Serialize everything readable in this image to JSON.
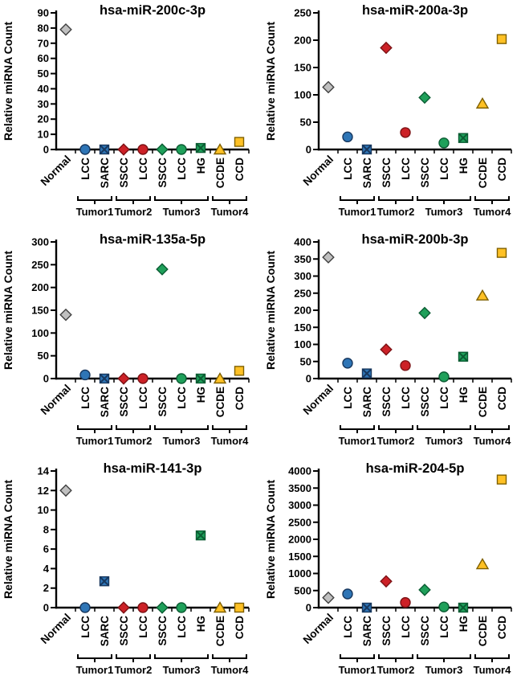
{
  "figure": {
    "background": "#FFFFFF",
    "axis_color": "#000000",
    "ylabel": "Relative miRNA Count"
  },
  "samples": [
    {
      "label": "Normal",
      "shape": "diamond",
      "fill": "#C0C0C0",
      "stroke": "#404040"
    },
    {
      "label": "LCC",
      "shape": "circle",
      "fill": "#2E75B6",
      "stroke": "#17375E"
    },
    {
      "label": "SARC",
      "shape": "square-x",
      "fill": "#2E75B6",
      "stroke": "#17375E"
    },
    {
      "label": "SSCC",
      "shape": "diamond",
      "fill": "#CC2127",
      "stroke": "#7C1215"
    },
    {
      "label": "LCC",
      "shape": "circle",
      "fill": "#CC2127",
      "stroke": "#7C1215"
    },
    {
      "label": "SSCC",
      "shape": "diamond",
      "fill": "#1FA05A",
      "stroke": "#0B5C33"
    },
    {
      "label": "LCC",
      "shape": "circle",
      "fill": "#1FA05A",
      "stroke": "#0B5C33"
    },
    {
      "label": "HG",
      "shape": "square-x",
      "fill": "#1FA05A",
      "stroke": "#0B5C33"
    },
    {
      "label": "CCDE",
      "shape": "triangle",
      "fill": "#FFC125",
      "stroke": "#7F6000"
    },
    {
      "label": "CCD",
      "shape": "square",
      "fill": "#FFC125",
      "stroke": "#7F6000"
    }
  ],
  "groups": [
    {
      "label": "Tumor1",
      "from": 1,
      "to": 2
    },
    {
      "label": "Tumor2",
      "from": 3,
      "to": 4
    },
    {
      "label": "Tumor3",
      "from": 5,
      "to": 7
    },
    {
      "label": "Tumor4",
      "from": 8,
      "to": 9
    }
  ],
  "chart_data": [
    {
      "type": "scatter",
      "title": "hsa-miR-200c-3p",
      "ylabel": "Relative miRNA Count",
      "categories": [
        "Normal",
        "LCC",
        "SARC",
        "SSCC",
        "LCC",
        "SSCC",
        "LCC",
        "HG",
        "CCDE",
        "CCD"
      ],
      "values": [
        79,
        0,
        0,
        0,
        0,
        0,
        0,
        1,
        0,
        5
      ],
      "ylim": [
        0,
        90
      ],
      "ystep": 10,
      "grid": false,
      "legend": "none"
    },
    {
      "type": "scatter",
      "title": "hsa-miR-200a-3p",
      "ylabel": "Relative miRNA Count",
      "categories": [
        "Normal",
        "LCC",
        "SARC",
        "SSCC",
        "LCC",
        "SSCC",
        "LCC",
        "HG",
        "CCDE",
        "CCD"
      ],
      "values": [
        114,
        23,
        0,
        186,
        31,
        95,
        12,
        21,
        84,
        202
      ],
      "ylim": [
        0,
        250
      ],
      "ystep": 50,
      "grid": false,
      "legend": "none"
    },
    {
      "type": "scatter",
      "title": "hsa-miR-135a-5p",
      "ylabel": "Relative miRNA Count",
      "categories": [
        "Normal",
        "LCC",
        "SARC",
        "SSCC",
        "LCC",
        "SSCC",
        "LCC",
        "HG",
        "CCDE",
        "CCD"
      ],
      "values": [
        140,
        8,
        0,
        0,
        0,
        240,
        0,
        0,
        0,
        17
      ],
      "ylim": [
        0,
        300
      ],
      "ystep": 50,
      "grid": false,
      "legend": "none"
    },
    {
      "type": "scatter",
      "title": "hsa-miR-200b-3p",
      "ylabel": "Relative miRNA Count",
      "categories": [
        "Normal",
        "LCC",
        "SARC",
        "SSCC",
        "LCC",
        "SSCC",
        "LCC",
        "HG",
        "CCDE",
        "CCD"
      ],
      "values": [
        355,
        45,
        15,
        85,
        38,
        192,
        5,
        64,
        243,
        368
      ],
      "ylim": [
        0,
        400
      ],
      "ystep": 50,
      "grid": false,
      "legend": "none"
    },
    {
      "type": "scatter",
      "title": "hsa-miR-141-3p",
      "ylabel": "Relative miRNA Count",
      "categories": [
        "Normal",
        "LCC",
        "SARC",
        "SSCC",
        "LCC",
        "SSCC",
        "LCC",
        "HG",
        "CCDE",
        "CCD"
      ],
      "values": [
        12,
        0,
        2.7,
        0,
        0,
        0,
        0,
        7.4,
        0,
        0
      ],
      "ylim": [
        0,
        14
      ],
      "ystep": 2,
      "grid": false,
      "legend": "none"
    },
    {
      "type": "scatter",
      "title": "hsa-miR-204-5p",
      "ylabel": "Relative miRNA Count",
      "categories": [
        "Normal",
        "LCC",
        "SARC",
        "SSCC",
        "LCC",
        "SSCC",
        "LCC",
        "HG",
        "CCDE",
        "CCD"
      ],
      "values": [
        290,
        400,
        0,
        770,
        150,
        520,
        20,
        0,
        1270,
        3750
      ],
      "ylim": [
        0,
        4000
      ],
      "ystep": 500,
      "grid": false,
      "legend": "none"
    }
  ]
}
